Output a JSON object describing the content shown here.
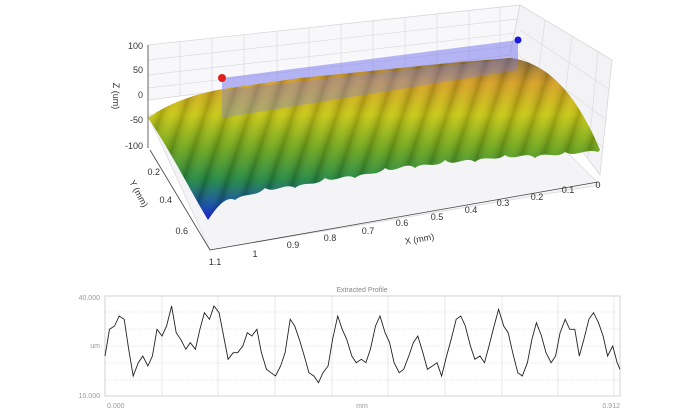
{
  "chart_data": [
    {
      "type": "surface3d",
      "title": "",
      "xlabel": "X (mm)",
      "ylabel": "Y (mm)",
      "zlabel": "Z (um)",
      "x_ticks": [
        "1.1",
        "1",
        "0.9",
        "0.8",
        "0.7",
        "0.6",
        "0.5",
        "0.4",
        "0.3",
        "0.2",
        "0.1",
        "0"
      ],
      "y_ticks": [
        "0.2",
        "0.4",
        "0.6"
      ],
      "z_ticks": [
        "100",
        "50",
        "0",
        "-50",
        "-100"
      ],
      "xlim": [
        0,
        1.1
      ],
      "ylim": [
        0,
        0.65
      ],
      "zlim": [
        -100,
        100
      ],
      "description": "Cylindrical (arched) surface with ~20 parallel ridges along Y; color map blue (low) through green, yellow to orange/red (high). Semi-transparent blue extraction plane between a red and a blue marker point.",
      "markers": [
        {
          "name": "start-point",
          "color": "#e02020"
        },
        {
          "name": "end-point",
          "color": "#1a1ad8"
        }
      ],
      "plane_color": "#8080f0"
    },
    {
      "type": "line",
      "title": "Extracted Profile",
      "xlabel": "mm",
      "ylabel": "um",
      "xlim": [
        0.0,
        0.912
      ],
      "ylim": [
        10.0,
        40.0
      ],
      "x_tick_labels": [
        "0.000",
        "0.912"
      ],
      "y_tick_labels": [
        "40.000",
        "10.000"
      ],
      "grid": true,
      "series": [
        {
          "name": "profile",
          "x": [
            0.0,
            0.008,
            0.017,
            0.025,
            0.034,
            0.042,
            0.05,
            0.059,
            0.067,
            0.076,
            0.084,
            0.092,
            0.101,
            0.109,
            0.118,
            0.126,
            0.134,
            0.143,
            0.151,
            0.16,
            0.168,
            0.176,
            0.185,
            0.193,
            0.202,
            0.21,
            0.218,
            0.227,
            0.235,
            0.244,
            0.252,
            0.26,
            0.269,
            0.277,
            0.286,
            0.294,
            0.302,
            0.311,
            0.319,
            0.328,
            0.336,
            0.344,
            0.353,
            0.361,
            0.37,
            0.378,
            0.386,
            0.395,
            0.403,
            0.412,
            0.42,
            0.428,
            0.437,
            0.445,
            0.454,
            0.462,
            0.47,
            0.479,
            0.487,
            0.496,
            0.504,
            0.512,
            0.521,
            0.529,
            0.538,
            0.546,
            0.554,
            0.563,
            0.571,
            0.58,
            0.588,
            0.596,
            0.605,
            0.613,
            0.622,
            0.63,
            0.638,
            0.647,
            0.655,
            0.664,
            0.672,
            0.68,
            0.689,
            0.697,
            0.706,
            0.714,
            0.722,
            0.731,
            0.739,
            0.748,
            0.756,
            0.764,
            0.773,
            0.781,
            0.79,
            0.798,
            0.806,
            0.815,
            0.823,
            0.832,
            0.84,
            0.848,
            0.857,
            0.865,
            0.874,
            0.882,
            0.89,
            0.899,
            0.907,
            0.912
          ],
          "values": [
            22,
            30,
            31,
            34,
            33,
            24,
            16,
            20,
            22,
            19,
            22,
            30,
            28,
            31,
            37,
            29,
            27,
            24,
            26,
            24,
            30,
            35,
            33,
            37,
            35,
            28,
            21,
            23,
            23,
            25,
            29,
            28,
            30,
            23,
            18,
            17,
            16,
            19,
            23,
            33,
            31,
            27,
            22,
            17,
            16,
            14,
            17,
            19,
            27,
            34,
            30,
            27,
            22,
            20,
            21,
            20,
            24,
            31,
            34,
            29,
            26,
            20,
            17,
            18,
            22,
            26,
            28,
            23,
            18,
            19,
            20,
            16,
            22,
            27,
            33,
            34,
            31,
            25,
            21,
            22,
            20,
            25,
            31,
            36,
            31,
            29,
            23,
            17,
            16,
            20,
            27,
            32,
            28,
            23,
            20,
            22,
            29,
            33,
            30,
            30,
            22,
            27,
            33,
            35,
            32,
            28,
            22,
            25,
            20,
            18
          ]
        }
      ]
    }
  ]
}
